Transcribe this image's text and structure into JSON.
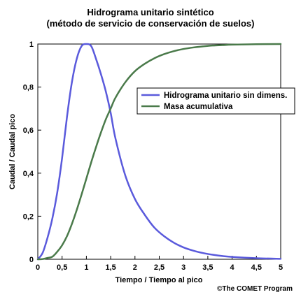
{
  "chart_data": {
    "type": "line",
    "title": "Hidrograma unitario sintético",
    "subtitle": "(método de servicio de conservación de suelos)",
    "xlabel": "Tiempo / Tiempo al pico",
    "ylabel": "Caudal / Caudal pico",
    "xlim": [
      0,
      5
    ],
    "ylim": [
      0,
      1
    ],
    "x_ticks": [
      0,
      0.5,
      1,
      1.5,
      2,
      2.5,
      3,
      3.5,
      4,
      4.5,
      5
    ],
    "x_tick_labels": [
      "0",
      "0,5",
      "1",
      "1,5",
      "2",
      "2,5",
      "3",
      "3,5",
      "4",
      "4,5",
      "5"
    ],
    "y_ticks": [
      0,
      0.2,
      0.4,
      0.6,
      0.8,
      1
    ],
    "y_tick_labels": [
      "0",
      "0,2",
      "0,4",
      "0,6",
      "0,8",
      "1"
    ],
    "grid": false,
    "legend_position": "right",
    "series": [
      {
        "name": "Hidrograma unitario sin dimens.",
        "color": "#5a5adc",
        "x": [
          0,
          0.1,
          0.2,
          0.3,
          0.4,
          0.5,
          0.6,
          0.7,
          0.8,
          0.9,
          1.0,
          1.1,
          1.2,
          1.3,
          1.4,
          1.5,
          1.6,
          1.8,
          2.0,
          2.2,
          2.4,
          2.6,
          2.8,
          3.0,
          3.2,
          3.4,
          3.6,
          3.8,
          4.0,
          4.5,
          5.0
        ],
        "y": [
          0,
          0.03,
          0.1,
          0.19,
          0.31,
          0.47,
          0.66,
          0.82,
          0.93,
          0.99,
          1.0,
          0.99,
          0.93,
          0.86,
          0.78,
          0.68,
          0.56,
          0.39,
          0.28,
          0.207,
          0.147,
          0.107,
          0.077,
          0.055,
          0.04,
          0.029,
          0.021,
          0.015,
          0.011,
          0.005,
          0.002
        ]
      },
      {
        "name": "Masa acumulativa",
        "color": "#4a7a4a",
        "x": [
          0,
          0.1,
          0.2,
          0.3,
          0.4,
          0.5,
          0.6,
          0.7,
          0.8,
          0.9,
          1.0,
          1.1,
          1.2,
          1.3,
          1.4,
          1.5,
          1.6,
          1.8,
          2.0,
          2.2,
          2.4,
          2.6,
          2.8,
          3.0,
          3.2,
          3.4,
          3.6,
          3.8,
          4.0,
          4.5,
          5.0
        ],
        "y": [
          0,
          0.001,
          0.006,
          0.012,
          0.035,
          0.065,
          0.107,
          0.163,
          0.228,
          0.3,
          0.375,
          0.451,
          0.522,
          0.589,
          0.65,
          0.7,
          0.751,
          0.822,
          0.874,
          0.908,
          0.934,
          0.953,
          0.967,
          0.977,
          0.984,
          0.989,
          0.993,
          0.995,
          0.997,
          0.999,
          1.0
        ]
      }
    ]
  },
  "credit": "©The COMET Program"
}
